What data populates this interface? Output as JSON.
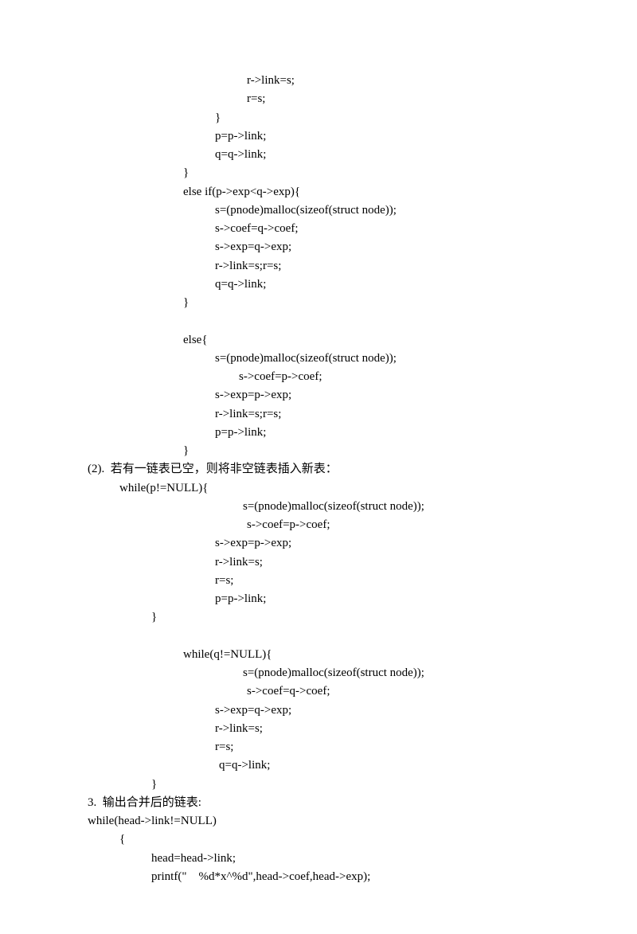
{
  "lines": [
    {
      "indent": 200,
      "text": "r->link=s;"
    },
    {
      "indent": 200,
      "text": "r=s;"
    },
    {
      "indent": 160,
      "text": "}"
    },
    {
      "indent": 160,
      "text": "p=p->link;"
    },
    {
      "indent": 160,
      "text": "q=q->link;"
    },
    {
      "indent": 120,
      "text": "}"
    },
    {
      "indent": 120,
      "text": "else if(p->exp<q->exp){"
    },
    {
      "indent": 160,
      "text": "s=(pnode)malloc(sizeof(struct node));"
    },
    {
      "indent": 160,
      "text": "s->coef=q->coef;"
    },
    {
      "indent": 160,
      "text": "s->exp=q->exp;"
    },
    {
      "indent": 160,
      "text": "r->link=s;r=s;"
    },
    {
      "indent": 160,
      "text": "q=q->link;"
    },
    {
      "indent": 120,
      "text": "}"
    },
    {
      "indent": 0,
      "text": ""
    },
    {
      "indent": 120,
      "text": "else{"
    },
    {
      "indent": 160,
      "text": "s=(pnode)malloc(sizeof(struct node));"
    },
    {
      "indent": 190,
      "text": "s->coef=p->coef;"
    },
    {
      "indent": 160,
      "text": "s->exp=p->exp;"
    },
    {
      "indent": 160,
      "text": "r->link=s;r=s;"
    },
    {
      "indent": 160,
      "text": "p=p->link;"
    },
    {
      "indent": 120,
      "text": "}"
    },
    {
      "indent": 0,
      "text": "(2).  若有一链表已空，则将非空链表插入新表："
    },
    {
      "indent": 40,
      "text": "while(p!=NULL){"
    },
    {
      "indent": 195,
      "text": "s=(pnode)malloc(sizeof(struct node));"
    },
    {
      "indent": 200,
      "text": "s->coef=p->coef;"
    },
    {
      "indent": 160,
      "text": "s->exp=p->exp;"
    },
    {
      "indent": 160,
      "text": "r->link=s;"
    },
    {
      "indent": 160,
      "text": "r=s;"
    },
    {
      "indent": 160,
      "text": "p=p->link;"
    },
    {
      "indent": 80,
      "text": "}"
    },
    {
      "indent": 0,
      "text": ""
    },
    {
      "indent": 120,
      "text": "while(q!=NULL){"
    },
    {
      "indent": 195,
      "text": "s=(pnode)malloc(sizeof(struct node));"
    },
    {
      "indent": 200,
      "text": "s->coef=q->coef;"
    },
    {
      "indent": 160,
      "text": "s->exp=q->exp;"
    },
    {
      "indent": 160,
      "text": "r->link=s;"
    },
    {
      "indent": 160,
      "text": "r=s;"
    },
    {
      "indent": 165,
      "text": "q=q->link;"
    },
    {
      "indent": 80,
      "text": "}"
    },
    {
      "indent": 0,
      "text": "3.  输出合并后的链表:"
    },
    {
      "indent": 0,
      "text": "while(head->link!=NULL)"
    },
    {
      "indent": 40,
      "text": "{"
    },
    {
      "indent": 80,
      "text": "head=head->link;"
    },
    {
      "indent": 80,
      "text": "printf(\"    %d*x^%d\",head->coef,head->exp);"
    }
  ]
}
